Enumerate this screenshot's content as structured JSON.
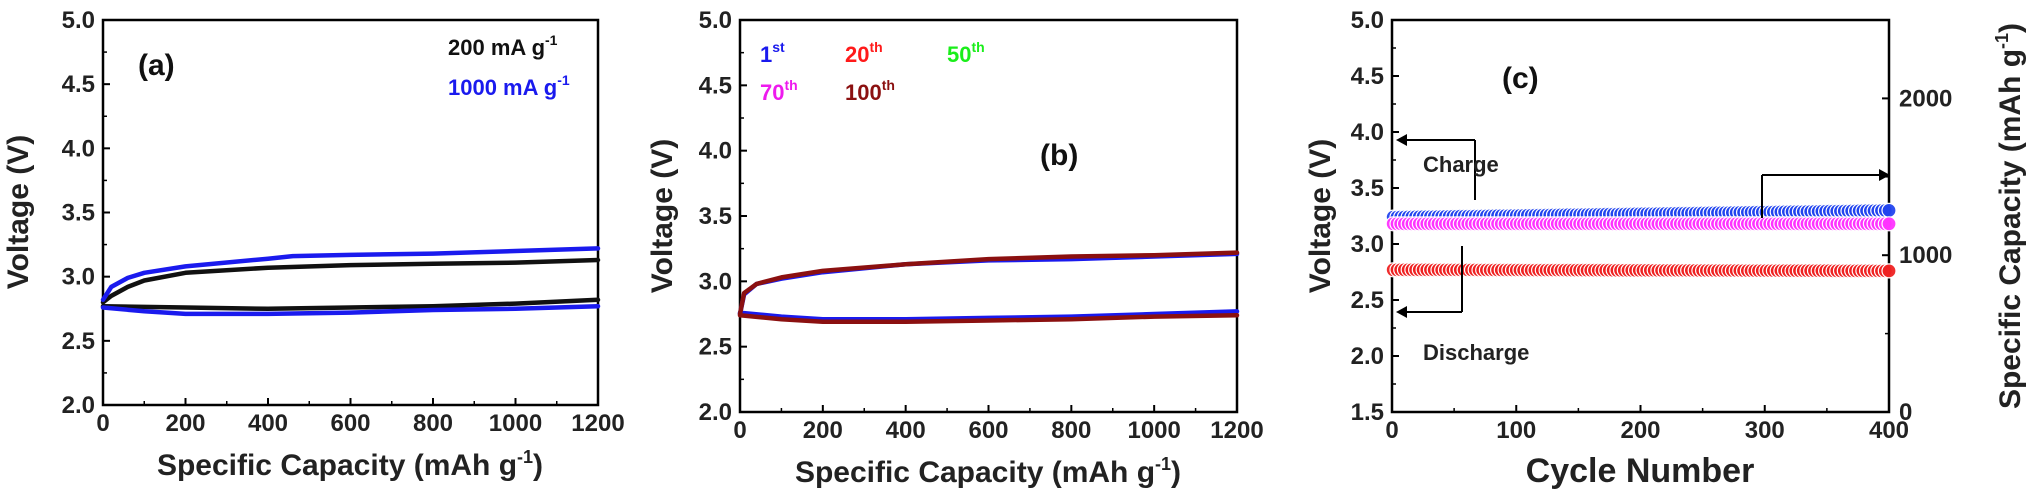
{
  "chart_data": [
    {
      "type": "line",
      "panel_label": "(a)",
      "xlabel": "Specific Capacity (mAh g",
      "xlabel_sup": "-1",
      "xlabel_end": ")",
      "ylabel": "Voltage (V)",
      "xlim": [
        0,
        1200
      ],
      "ylim": [
        2.0,
        5.0
      ],
      "x_ticks": [
        "0",
        "200",
        "400",
        "600",
        "800",
        "1000",
        "1200"
      ],
      "y_ticks": [
        "2.0",
        "2.5",
        "3.0",
        "3.5",
        "4.0",
        "4.5",
        "5.0"
      ],
      "series": [
        {
          "name": "200 mA g",
          "name_sup": "-1",
          "color": "#111111",
          "charge": [
            [
              0,
              2.8
            ],
            [
              20,
              2.85
            ],
            [
              60,
              2.92
            ],
            [
              100,
              2.97
            ],
            [
              200,
              3.03
            ],
            [
              400,
              3.07
            ],
            [
              600,
              3.09
            ],
            [
              800,
              3.1
            ],
            [
              1000,
              3.11
            ],
            [
              1200,
              3.13
            ]
          ],
          "discharge": [
            [
              0,
              2.77
            ],
            [
              200,
              2.76
            ],
            [
              400,
              2.75
            ],
            [
              600,
              2.76
            ],
            [
              800,
              2.77
            ],
            [
              1000,
              2.79
            ],
            [
              1200,
              2.82
            ]
          ]
        },
        {
          "name": "1000 mA g",
          "name_sup": "-1",
          "color": "#1a1aee",
          "charge": [
            [
              0,
              2.82
            ],
            [
              20,
              2.92
            ],
            [
              60,
              2.99
            ],
            [
              100,
              3.03
            ],
            [
              200,
              3.08
            ],
            [
              400,
              3.14
            ],
            [
              460,
              3.16
            ],
            [
              600,
              3.17
            ],
            [
              800,
              3.18
            ],
            [
              1000,
              3.2
            ],
            [
              1200,
              3.22
            ]
          ],
          "discharge": [
            [
              0,
              2.76
            ],
            [
              100,
              2.73
            ],
            [
              200,
              2.71
            ],
            [
              400,
              2.71
            ],
            [
              600,
              2.72
            ],
            [
              800,
              2.74
            ],
            [
              1000,
              2.75
            ],
            [
              1200,
              2.77
            ]
          ]
        }
      ]
    },
    {
      "type": "line",
      "panel_label": "(b)",
      "xlabel": "Specific Capacity (mAh g",
      "xlabel_sup": "-1",
      "xlabel_end": ")",
      "ylabel": "Voltage (V)",
      "xlim": [
        0,
        1200
      ],
      "ylim": [
        2.0,
        5.0
      ],
      "x_ticks": [
        "0",
        "200",
        "400",
        "600",
        "800",
        "1000",
        "1200"
      ],
      "y_ticks": [
        "2.0",
        "2.5",
        "3.0",
        "3.5",
        "4.0",
        "4.5",
        "5.0"
      ],
      "legend": [
        {
          "name": "1",
          "sup": "st",
          "color": "#1a1aee"
        },
        {
          "name": "20",
          "sup": "th",
          "color": "#ff1a1a"
        },
        {
          "name": "50",
          "sup": "th",
          "color": "#1aee1a"
        },
        {
          "name": "70",
          "sup": "th",
          "color": "#ee1aee"
        },
        {
          "name": "100",
          "sup": "th",
          "color": "#8b1010"
        }
      ],
      "series": [
        {
          "name": "1st",
          "color": "#1a1aee",
          "charge": [
            [
              0,
              2.75
            ],
            [
              10,
              2.9
            ],
            [
              40,
              2.98
            ],
            [
              100,
              3.02
            ],
            [
              200,
              3.07
            ],
            [
              400,
              3.13
            ],
            [
              600,
              3.16
            ],
            [
              800,
              3.17
            ],
            [
              1000,
              3.19
            ],
            [
              1200,
              3.21
            ]
          ],
          "discharge": [
            [
              0,
              2.76
            ],
            [
              100,
              2.73
            ],
            [
              200,
              2.71
            ],
            [
              400,
              2.71
            ],
            [
              600,
              2.72
            ],
            [
              800,
              2.73
            ],
            [
              1000,
              2.75
            ],
            [
              1200,
              2.77
            ]
          ]
        },
        {
          "name": "100th",
          "color": "#8b1010",
          "charge": [
            [
              0,
              2.75
            ],
            [
              10,
              2.91
            ],
            [
              40,
              2.98
            ],
            [
              100,
              3.03
            ],
            [
              200,
              3.08
            ],
            [
              400,
              3.13
            ],
            [
              600,
              3.17
            ],
            [
              800,
              3.19
            ],
            [
              1000,
              3.2
            ],
            [
              1200,
              3.22
            ]
          ],
          "discharge": [
            [
              0,
              2.74
            ],
            [
              100,
              2.71
            ],
            [
              200,
              2.69
            ],
            [
              400,
              2.69
            ],
            [
              600,
              2.7
            ],
            [
              800,
              2.71
            ],
            [
              1000,
              2.73
            ],
            [
              1200,
              2.74
            ]
          ]
        }
      ]
    },
    {
      "type": "scatter",
      "panel_label": "(c)",
      "xlabel": "Cycle Number",
      "ylabel": "Voltage (V)",
      "y2label": "Specific Capacity (mAh g",
      "y2label_sup": "-1",
      "y2label_end": ")",
      "xlim": [
        0,
        400
      ],
      "ylim": [
        1.5,
        5.0
      ],
      "y2lim": [
        0,
        2500
      ],
      "x_ticks": [
        "0",
        "100",
        "200",
        "300",
        "400"
      ],
      "y_ticks": [
        "1.5",
        "2.0",
        "2.5",
        "3.0",
        "3.5",
        "4.0",
        "4.5",
        "5.0"
      ],
      "y2_ticks": [
        "0",
        "1000",
        "2000"
      ],
      "series": [
        {
          "name": "Charge",
          "axis": "left",
          "color": "#2244ee",
          "start": 3.24,
          "end": 3.3,
          "n_points": 400
        },
        {
          "name": "Discharge",
          "axis": "left",
          "color": "#ee2222",
          "start": 2.77,
          "end": 2.76,
          "n_points": 400
        },
        {
          "name": "Specific Capacity",
          "axis": "right",
          "color": "#ff33ff",
          "start": 1200,
          "end": 1200,
          "n_points": 400
        }
      ],
      "annotations": [
        {
          "text": "Charge"
        },
        {
          "text": "Discharge"
        }
      ]
    }
  ]
}
